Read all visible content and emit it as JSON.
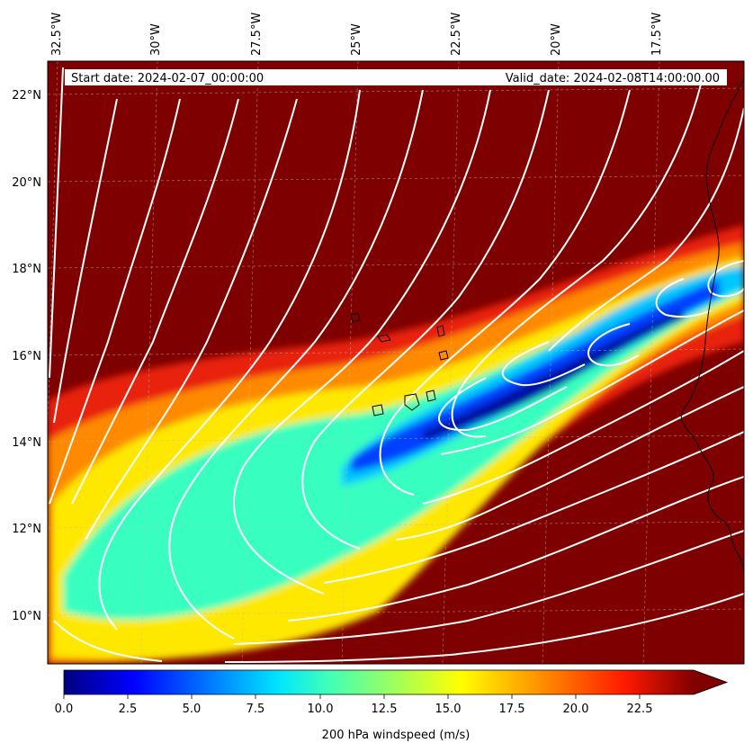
{
  "header": {
    "start_date": "Start date: 2024-02-07_00:00:00",
    "valid_date": "Valid_date: 2024-02-08T14:00:00.00"
  },
  "map": {
    "longitude_labels": [
      "32.5°W",
      "30°W",
      "27.5°W",
      "25°W",
      "22.5°W",
      "20°W",
      "17.5°W"
    ],
    "latitude_labels": [
      "22°N",
      "20°N",
      "18°N",
      "16°N",
      "14°N",
      "12°N",
      "10°N"
    ],
    "field": "200 hPa windspeed",
    "background_color": "#7f0000",
    "coastline_color": "#000000",
    "streamline_color": "#ffffff"
  },
  "colorbar": {
    "title": "200 hPa windspeed (m/s)",
    "tick_labels": [
      "0.0",
      "2.5",
      "5.0",
      "7.5",
      "10.0",
      "12.5",
      "15.0",
      "17.5",
      "20.0",
      "22.5"
    ],
    "colormap": "jet",
    "extend": "max"
  }
}
